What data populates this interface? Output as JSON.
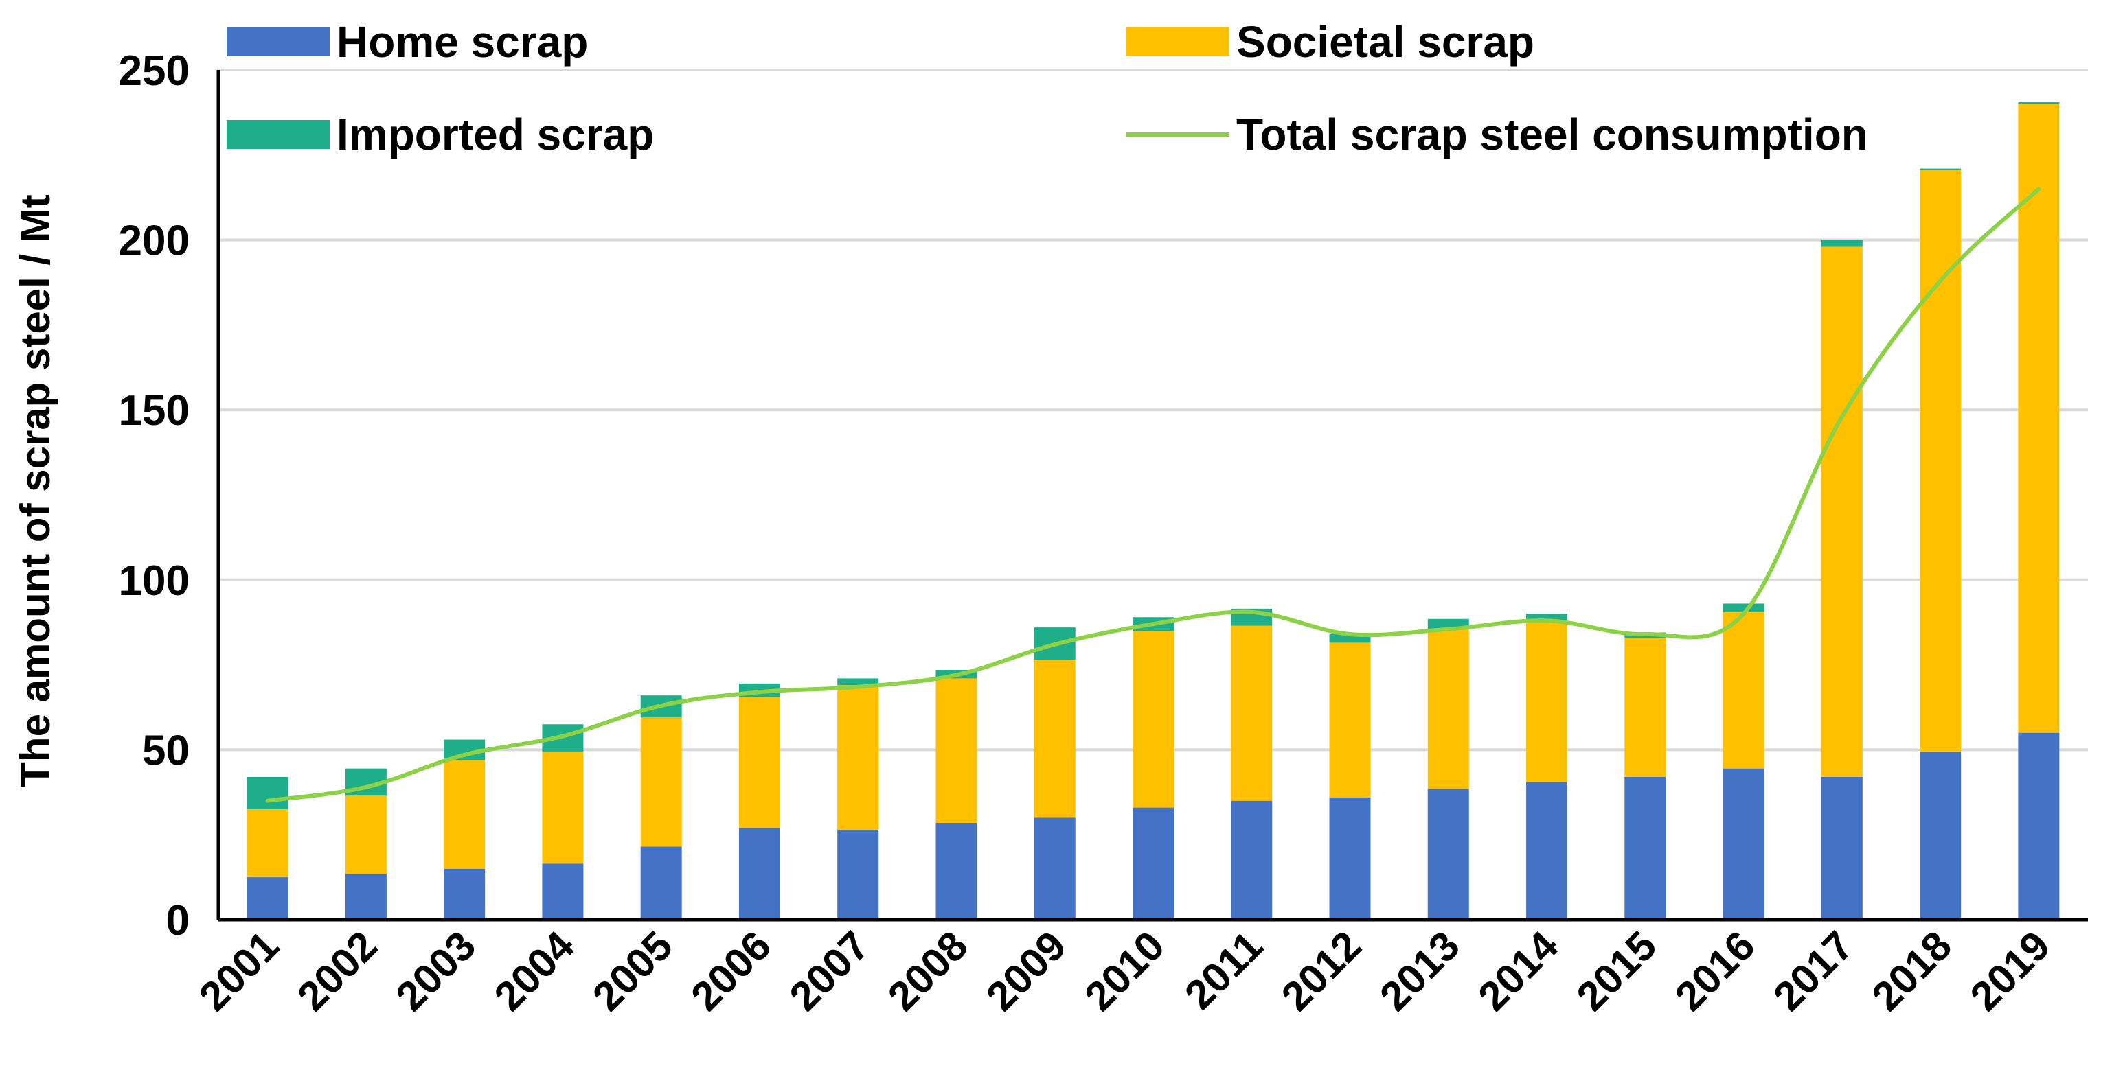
{
  "chart_data": {
    "type": "bar",
    "stacked": true,
    "title": "",
    "xlabel": "",
    "ylabel": "The amount of scrap steel / Mt",
    "ylim": [
      0,
      250
    ],
    "yticks": [
      0,
      50,
      100,
      150,
      200,
      250
    ],
    "ytick_labels": [
      "0",
      "50",
      "100",
      "150",
      "200",
      "250"
    ],
    "grid": true,
    "legend_position": "top",
    "categories": [
      "2001",
      "2002",
      "2003",
      "2004",
      "2005",
      "2006",
      "2007",
      "2008",
      "2009",
      "2010",
      "2011",
      "2012",
      "2013",
      "2014",
      "2015",
      "2016",
      "2017",
      "2018",
      "2019"
    ],
    "series": [
      {
        "name": "Home scrap",
        "kind": "bar",
        "color": "#4472C4",
        "values": [
          12.5,
          13.5,
          15,
          16.5,
          21.5,
          27,
          26.5,
          28.5,
          30,
          33,
          35,
          36,
          38.5,
          40.5,
          42,
          44.5,
          42,
          49.5,
          55
        ]
      },
      {
        "name": "Societal scrap",
        "kind": "bar",
        "color": "#FFC000",
        "values": [
          20,
          23,
          32,
          33,
          38,
          38.5,
          42.5,
          42.5,
          46.5,
          52,
          51.5,
          45.5,
          47,
          47.5,
          41,
          46,
          156,
          171,
          185
        ]
      },
      {
        "name": "Imported scrap",
        "kind": "bar",
        "color": "#1FAE8A",
        "values": [
          9.5,
          8,
          6,
          8,
          6.5,
          4,
          2,
          2.5,
          9.5,
          4,
          5,
          2.5,
          3,
          2,
          1.5,
          2.5,
          2,
          0.5,
          0.5
        ]
      },
      {
        "name": "Total scrap steel consumption",
        "kind": "line",
        "color": "#8CD146",
        "values": [
          35,
          39,
          48.5,
          54,
          63,
          67,
          68.5,
          72,
          81,
          87,
          90.5,
          84,
          85.5,
          88,
          84,
          90,
          148,
          188,
          215
        ]
      }
    ]
  }
}
